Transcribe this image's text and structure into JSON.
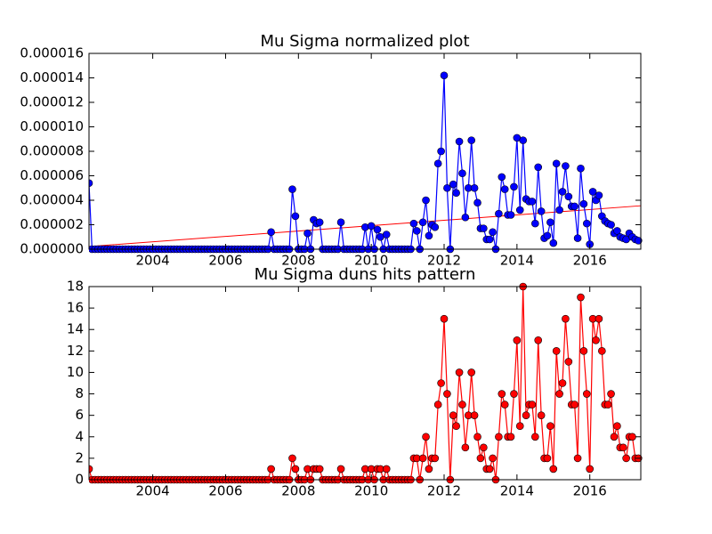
{
  "chart_data": [
    {
      "type": "line",
      "title": "Mu Sigma normalized plot",
      "x": [
        2002.25,
        2002.333,
        2002.417,
        2002.5,
        2002.583,
        2002.667,
        2002.75,
        2002.833,
        2002.917,
        2003,
        2003.083,
        2003.167,
        2003.25,
        2003.333,
        2003.417,
        2003.5,
        2003.583,
        2003.667,
        2003.75,
        2003.833,
        2003.917,
        2004,
        2004.083,
        2004.167,
        2004.25,
        2004.333,
        2004.417,
        2004.5,
        2004.583,
        2004.667,
        2004.75,
        2004.833,
        2004.917,
        2005,
        2005.083,
        2005.167,
        2005.25,
        2005.333,
        2005.417,
        2005.5,
        2005.583,
        2005.667,
        2005.75,
        2005.833,
        2005.917,
        2006,
        2006.083,
        2006.167,
        2006.25,
        2006.333,
        2006.417,
        2006.5,
        2006.583,
        2006.667,
        2006.75,
        2006.833,
        2006.917,
        2007,
        2007.083,
        2007.167,
        2007.25,
        2007.333,
        2007.417,
        2007.5,
        2007.583,
        2007.667,
        2007.75,
        2007.833,
        2007.917,
        2008,
        2008.083,
        2008.167,
        2008.25,
        2008.333,
        2008.417,
        2008.5,
        2008.583,
        2008.667,
        2008.75,
        2008.833,
        2008.917,
        2009,
        2009.083,
        2009.167,
        2009.25,
        2009.333,
        2009.417,
        2009.5,
        2009.583,
        2009.667,
        2009.75,
        2009.833,
        2009.917,
        2010,
        2010.083,
        2010.167,
        2010.25,
        2010.333,
        2010.417,
        2010.5,
        2010.583,
        2010.667,
        2010.75,
        2010.833,
        2010.917,
        2011,
        2011.083,
        2011.167,
        2011.25,
        2011.333,
        2011.417,
        2011.5,
        2011.583,
        2011.667,
        2011.75,
        2011.833,
        2011.917,
        2012,
        2012.083,
        2012.167,
        2012.25,
        2012.333,
        2012.417,
        2012.5,
        2012.583,
        2012.667,
        2012.75,
        2012.833,
        2012.917,
        2013,
        2013.083,
        2013.167,
        2013.25,
        2013.333,
        2013.417,
        2013.5,
        2013.583,
        2013.667,
        2013.75,
        2013.833,
        2013.917,
        2014,
        2014.083,
        2014.167,
        2014.25,
        2014.333,
        2014.417,
        2014.5,
        2014.583,
        2014.667,
        2014.75,
        2014.833,
        2014.917,
        2015,
        2015.083,
        2015.167,
        2015.25,
        2015.333,
        2015.417,
        2015.5,
        2015.583,
        2015.667,
        2015.75,
        2015.833,
        2015.917,
        2016,
        2016.083,
        2016.167,
        2016.25,
        2016.333,
        2016.417,
        2016.5,
        2016.583,
        2016.667,
        2016.75,
        2016.833,
        2016.917,
        2017,
        2017.083,
        2017.167,
        2017.25,
        2017.333
      ],
      "values": [
        5.4e-06,
        0,
        0,
        0,
        0,
        0,
        0,
        0,
        0,
        0,
        0,
        0,
        0,
        0,
        0,
        0,
        0,
        0,
        0,
        0,
        0,
        0,
        0,
        0,
        0,
        0,
        0,
        0,
        0,
        0,
        0,
        0,
        0,
        0,
        0,
        0,
        0,
        0,
        0,
        0,
        0,
        0,
        0,
        0,
        0,
        0,
        0,
        0,
        0,
        0,
        0,
        0,
        0,
        0,
        0,
        0,
        0,
        0,
        0,
        0,
        1.4e-06,
        0,
        0,
        0,
        0,
        0,
        0,
        4.9e-06,
        2.7e-06,
        0,
        0,
        0,
        1.3e-06,
        0,
        2.4e-06,
        2.1e-06,
        2.2e-06,
        0,
        0,
        0,
        0,
        0,
        0,
        2.2e-06,
        0,
        0,
        0,
        0,
        0,
        0,
        0,
        1.8e-06,
        0,
        1.9e-06,
        0,
        1.6e-06,
        1e-06,
        0,
        1.2e-06,
        0,
        0,
        0,
        0,
        0,
        0,
        0,
        0,
        2.1e-06,
        1.5e-06,
        0,
        2.2e-06,
        4e-06,
        1.1e-06,
        2e-06,
        1.8e-06,
        7e-06,
        8e-06,
        1.42e-05,
        5e-06,
        0,
        5.3e-06,
        4.6e-06,
        8.8e-06,
        6.2e-06,
        2.6e-06,
        5e-06,
        8.9e-06,
        5e-06,
        3.8e-06,
        1.7e-06,
        1.7e-06,
        8e-07,
        8e-07,
        1.4e-06,
        0,
        2.9e-06,
        5.9e-06,
        4.9e-06,
        2.8e-06,
        2.8e-06,
        5.1e-06,
        9.1e-06,
        3.2e-06,
        8.9e-06,
        4.1e-06,
        3.9e-06,
        3.9e-06,
        2.1e-06,
        6.7e-06,
        3.1e-06,
        9e-07,
        1.1e-06,
        2.2e-06,
        5e-07,
        7e-06,
        3.2e-06,
        4.7e-06,
        6.8e-06,
        4.3e-06,
        3.5e-06,
        3.5e-06,
        9e-07,
        6.6e-06,
        3.7e-06,
        2.1e-06,
        4e-07,
        4.7e-06,
        4e-06,
        4.4e-06,
        2.7e-06,
        2.3e-06,
        2.1e-06,
        2e-06,
        1.3e-06,
        1.5e-06,
        1e-06,
        9e-07,
        8e-07,
        1.3e-06,
        1e-06,
        8e-07,
        7e-07
      ],
      "color": "#0000ff",
      "trend_line": {
        "x": [
          2002.25,
          2017.4
        ],
        "values": [
          2.2e-07,
          3.55e-06
        ],
        "color": "#ff0000"
      },
      "xlim": [
        2002.25,
        2017.4
      ],
      "xticks": [
        2004,
        2006,
        2008,
        2010,
        2012,
        2014,
        2016
      ],
      "ylim": [
        0,
        1.6e-05
      ],
      "yticks": [
        {
          "value": 0,
          "label": "0.000000"
        },
        {
          "value": 2e-06,
          "label": "0.000002"
        },
        {
          "value": 4e-06,
          "label": "0.000004"
        },
        {
          "value": 6e-06,
          "label": "0.000006"
        },
        {
          "value": 8e-06,
          "label": "0.000008"
        },
        {
          "value": 1e-05,
          "label": "0.000010"
        },
        {
          "value": 1.2e-05,
          "label": "0.000012"
        },
        {
          "value": 1.4e-05,
          "label": "0.000014"
        },
        {
          "value": 1.6e-05,
          "label": "0.000016"
        }
      ]
    },
    {
      "type": "line",
      "title": "Mu Sigma duns hits pattern",
      "x": [
        2002.25,
        2002.333,
        2002.417,
        2002.5,
        2002.583,
        2002.667,
        2002.75,
        2002.833,
        2002.917,
        2003,
        2003.083,
        2003.167,
        2003.25,
        2003.333,
        2003.417,
        2003.5,
        2003.583,
        2003.667,
        2003.75,
        2003.833,
        2003.917,
        2004,
        2004.083,
        2004.167,
        2004.25,
        2004.333,
        2004.417,
        2004.5,
        2004.583,
        2004.667,
        2004.75,
        2004.833,
        2004.917,
        2005,
        2005.083,
        2005.167,
        2005.25,
        2005.333,
        2005.417,
        2005.5,
        2005.583,
        2005.667,
        2005.75,
        2005.833,
        2005.917,
        2006,
        2006.083,
        2006.167,
        2006.25,
        2006.333,
        2006.417,
        2006.5,
        2006.583,
        2006.667,
        2006.75,
        2006.833,
        2006.917,
        2007,
        2007.083,
        2007.167,
        2007.25,
        2007.333,
        2007.417,
        2007.5,
        2007.583,
        2007.667,
        2007.75,
        2007.833,
        2007.917,
        2008,
        2008.083,
        2008.167,
        2008.25,
        2008.333,
        2008.417,
        2008.5,
        2008.583,
        2008.667,
        2008.75,
        2008.833,
        2008.917,
        2009,
        2009.083,
        2009.167,
        2009.25,
        2009.333,
        2009.417,
        2009.5,
        2009.583,
        2009.667,
        2009.75,
        2009.833,
        2009.917,
        2010,
        2010.083,
        2010.167,
        2010.25,
        2010.333,
        2010.417,
        2010.5,
        2010.583,
        2010.667,
        2010.75,
        2010.833,
        2010.917,
        2011,
        2011.083,
        2011.167,
        2011.25,
        2011.333,
        2011.417,
        2011.5,
        2011.583,
        2011.667,
        2011.75,
        2011.833,
        2011.917,
        2012,
        2012.083,
        2012.167,
        2012.25,
        2012.333,
        2012.417,
        2012.5,
        2012.583,
        2012.667,
        2012.75,
        2012.833,
        2012.917,
        2013,
        2013.083,
        2013.167,
        2013.25,
        2013.333,
        2013.417,
        2013.5,
        2013.583,
        2013.667,
        2013.75,
        2013.833,
        2013.917,
        2014,
        2014.083,
        2014.167,
        2014.25,
        2014.333,
        2014.417,
        2014.5,
        2014.583,
        2014.667,
        2014.75,
        2014.833,
        2014.917,
        2015,
        2015.083,
        2015.167,
        2015.25,
        2015.333,
        2015.417,
        2015.5,
        2015.583,
        2015.667,
        2015.75,
        2015.833,
        2015.917,
        2016,
        2016.083,
        2016.167,
        2016.25,
        2016.333,
        2016.417,
        2016.5,
        2016.583,
        2016.667,
        2016.75,
        2016.833,
        2016.917,
        2017,
        2017.083,
        2017.167,
        2017.25,
        2017.333
      ],
      "values": [
        1,
        0,
        0,
        0,
        0,
        0,
        0,
        0,
        0,
        0,
        0,
        0,
        0,
        0,
        0,
        0,
        0,
        0,
        0,
        0,
        0,
        0,
        0,
        0,
        0,
        0,
        0,
        0,
        0,
        0,
        0,
        0,
        0,
        0,
        0,
        0,
        0,
        0,
        0,
        0,
        0,
        0,
        0,
        0,
        0,
        0,
        0,
        0,
        0,
        0,
        0,
        0,
        0,
        0,
        0,
        0,
        0,
        0,
        0,
        0,
        1,
        0,
        0,
        0,
        0,
        0,
        0,
        2,
        1,
        0,
        0,
        0,
        1,
        0,
        1,
        1,
        1,
        0,
        0,
        0,
        0,
        0,
        0,
        1,
        0,
        0,
        0,
        0,
        0,
        0,
        0,
        1,
        0,
        1,
        0,
        1,
        1,
        0,
        1,
        0,
        0,
        0,
        0,
        0,
        0,
        0,
        0,
        2,
        2,
        0,
        2,
        4,
        1,
        2,
        2,
        7,
        9,
        15,
        8,
        0,
        6,
        5,
        10,
        7,
        3,
        6,
        10,
        6,
        4,
        2,
        3,
        1,
        1,
        2,
        0,
        4,
        8,
        7,
        4,
        4,
        8,
        13,
        5,
        18,
        6,
        7,
        7,
        4,
        13,
        6,
        2,
        2,
        5,
        1,
        12,
        8,
        9,
        15,
        11,
        7,
        7,
        2,
        17,
        12,
        8,
        1,
        15,
        13,
        15,
        12,
        7,
        7,
        8,
        4,
        5,
        3,
        3,
        2,
        4,
        4,
        2,
        2
      ],
      "color": "#ff0000",
      "xlim": [
        2002.25,
        2017.4
      ],
      "xticks": [
        2004,
        2006,
        2008,
        2010,
        2012,
        2014,
        2016
      ],
      "ylim": [
        0,
        18
      ],
      "yticks": [
        0,
        2,
        4,
        6,
        8,
        10,
        12,
        14,
        16,
        18
      ]
    }
  ]
}
